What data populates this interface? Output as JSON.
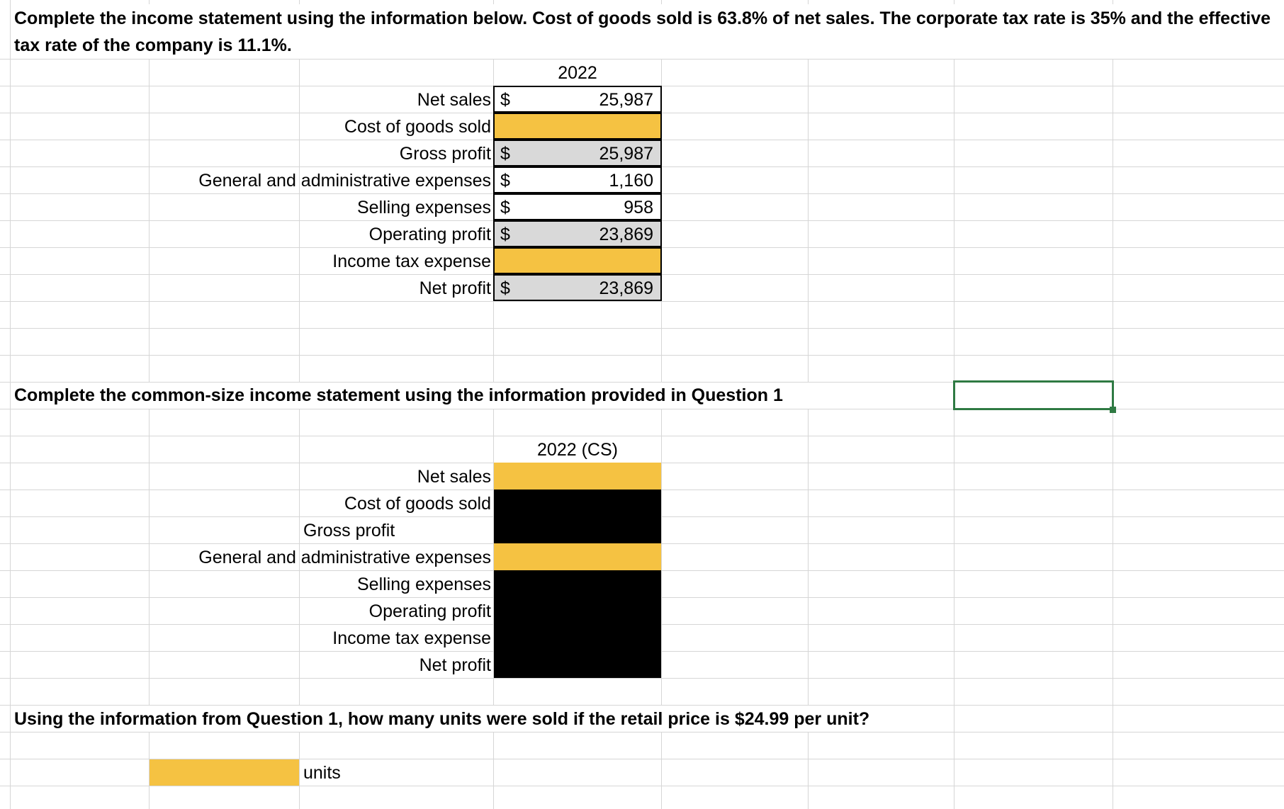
{
  "question1": {
    "prompt_line1": "Complete the income statement using the information below. Cost of goods sold is 63.8% of net sales. The corporate tax rate is 35% and the effective",
    "prompt_line2": "tax rate of the company is 11.1%.",
    "year_header": "2022",
    "rows": [
      {
        "label": "Net sales",
        "currency": "$",
        "value": "25,987",
        "fill": "white"
      },
      {
        "label": "Cost of goods sold",
        "currency": "",
        "value": "",
        "fill": "yellow"
      },
      {
        "label": "Gross profit",
        "currency": "$",
        "value": "25,987",
        "fill": "grey"
      },
      {
        "label": "General and administrative expenses",
        "currency": "$",
        "value": "1,160",
        "fill": "white"
      },
      {
        "label": "Selling expenses",
        "currency": "$",
        "value": "958",
        "fill": "white"
      },
      {
        "label": "Operating profit",
        "currency": "$",
        "value": "23,869",
        "fill": "grey"
      },
      {
        "label": "Income tax expense",
        "currency": "",
        "value": "",
        "fill": "yellow"
      },
      {
        "label": "Net profit",
        "currency": "$",
        "value": "23,869",
        "fill": "grey"
      }
    ]
  },
  "question2": {
    "prompt": "Complete the common-size income statement using the information provided in Question 1",
    "year_header": "2022 (CS)",
    "rows": [
      {
        "label": "Net sales",
        "fill": "yellow"
      },
      {
        "label": "Cost of goods sold",
        "fill": "black"
      },
      {
        "label": "Gross profit",
        "fill": "black"
      },
      {
        "label": "General and administrative expenses",
        "fill": "yellow"
      },
      {
        "label": "Selling expenses",
        "fill": "black"
      },
      {
        "label": "Operating profit",
        "fill": "black"
      },
      {
        "label": "Income tax expense",
        "fill": "black"
      },
      {
        "label": "Net profit",
        "fill": "black"
      }
    ]
  },
  "question3": {
    "prompt": "Using the information from Question 1, how many units were sold if the retail price is $24.99 per unit?",
    "units_label": "units",
    "answer_value": ""
  },
  "colors": {
    "yellow": "#f5c242",
    "grey": "#d9d9d9",
    "black": "#000000",
    "gridline": "#d6d6d6",
    "selection": "#2f7a43"
  }
}
